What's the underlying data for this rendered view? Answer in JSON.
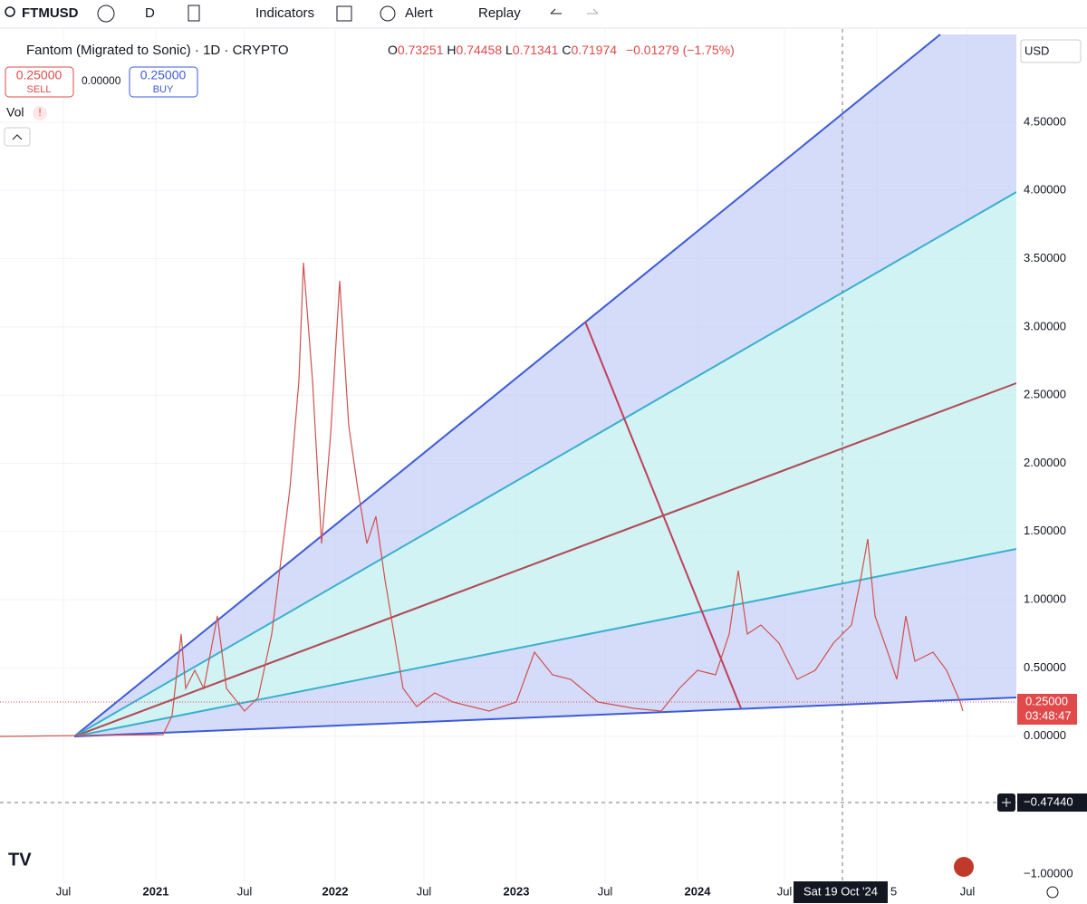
{
  "toolbar": {
    "symbol": "FTMUSD",
    "interval": "D",
    "indicators": "Indicators",
    "alert": "Alert",
    "replay": "Replay"
  },
  "legend": {
    "title": "Fantom (Migrated to Sonic) · 1D · CRYPTO",
    "o_label": "O",
    "open": "0.73251",
    "h_label": "H",
    "high": "0.74458",
    "l_label": "L",
    "low": "0.71341",
    "c_label": "C",
    "close": "0.71974",
    "change": "−0.01279 (−1.75%)"
  },
  "trade": {
    "sell_price": "0.25000",
    "sell": "SELL",
    "spread": "0.00000",
    "buy_price": "0.25000",
    "buy": "BUY"
  },
  "volume": {
    "label": "Vol",
    "warning": "!"
  },
  "price_axis": {
    "currency": "USD",
    "ticks": [
      "4.50000",
      "4.00000",
      "3.50000",
      "3.00000",
      "2.50000",
      "2.00000",
      "1.50000",
      "1.00000",
      "0.50000",
      "0.00000"
    ],
    "low_tick": "−1.00000",
    "last_price": "0.25000",
    "countdown": "03:48:47",
    "crosshair_price": "−0.47440"
  },
  "time_axis": {
    "labels": [
      "Jul",
      "2021",
      "Jul",
      "2022",
      "Jul",
      "2023",
      "Jul",
      "2024",
      "Jul",
      "Jul"
    ],
    "crosshair_date": "Sat 19 Oct '24",
    "partial": "5"
  }
}
